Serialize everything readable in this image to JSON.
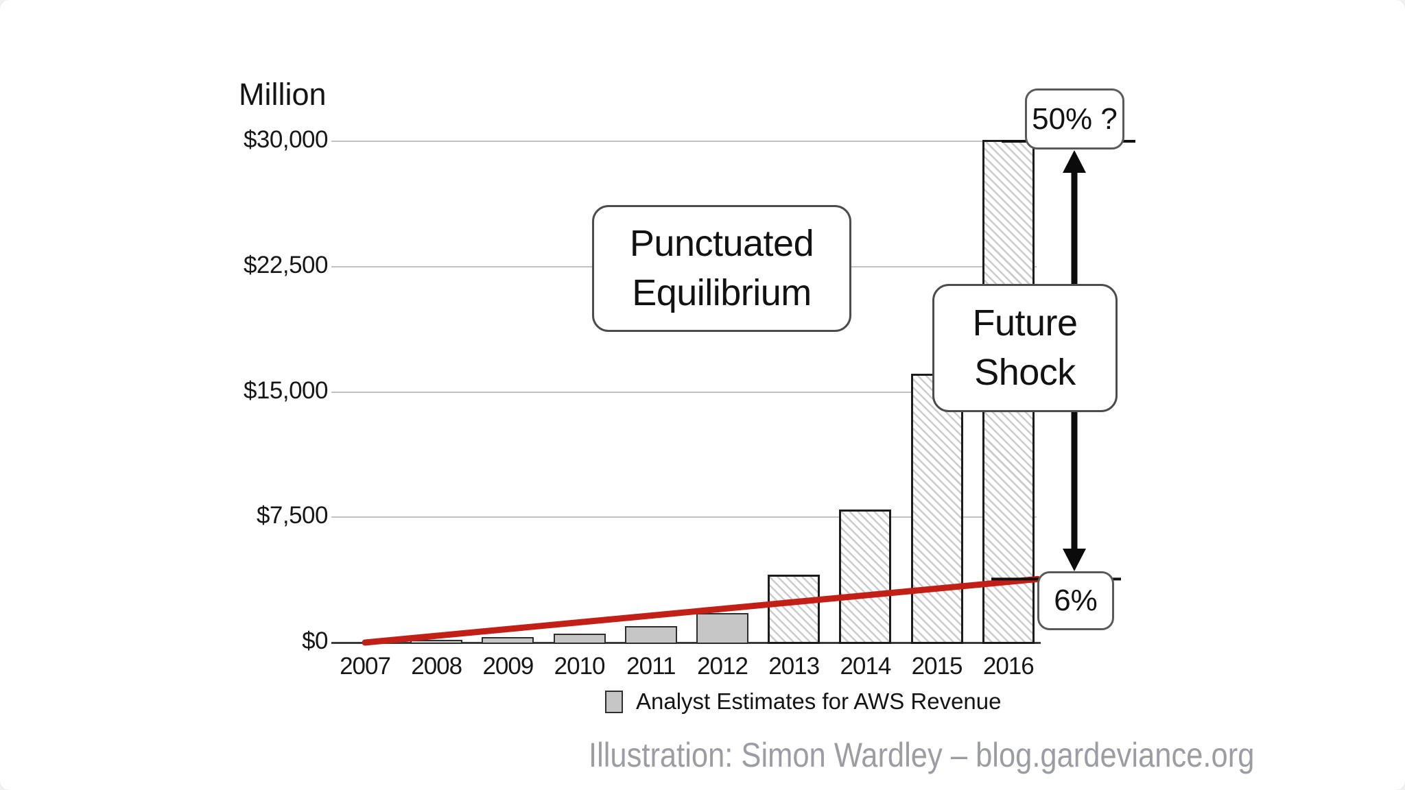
{
  "chart_data": {
    "type": "bar",
    "unit_label": "Million",
    "categories": [
      "2007",
      "2008",
      "2009",
      "2010",
      "2011",
      "2012",
      "2013",
      "2014",
      "2015",
      "2016"
    ],
    "series": [
      {
        "name": "Analyst Estimates for AWS Revenue",
        "values": [
          0,
          100,
          250,
          450,
          900,
          1700,
          4000,
          7900,
          16000,
          30000
        ],
        "bar_styles": [
          "none",
          "solid",
          "solid",
          "solid",
          "solid",
          "solid",
          "hatch",
          "hatch",
          "hatch",
          "hatch"
        ]
      }
    ],
    "ylim": [
      0,
      30000
    ],
    "yticks": [
      {
        "value": 30000,
        "label": "$30,000"
      },
      {
        "value": 22500,
        "label": "$22,500"
      },
      {
        "value": 15000,
        "label": "$15,000"
      },
      {
        "value": 7500,
        "label": "$7,500"
      },
      {
        "value": 0,
        "label": "$0"
      }
    ],
    "grid": true,
    "legend": {
      "label": "Analyst Estimates for AWS Revenue",
      "position": "bottom"
    },
    "trend_line": {
      "color": "#c22017",
      "from": {
        "category": "2007",
        "value": 0
      },
      "to": {
        "category": "2016",
        "value": 3800
      }
    },
    "marker_levels": [
      {
        "value": 30000,
        "label": "50% ?"
      },
      {
        "value": 3800,
        "label": "6%"
      }
    ]
  },
  "annotations": {
    "punctuated": {
      "line1": "Punctuated",
      "line2": "Equilibrium"
    },
    "future_shock": {
      "line1": "Future",
      "line2": "Shock"
    },
    "growth_high": "50% ?",
    "growth_low": "6%"
  },
  "footer": {
    "attribution": "Illustration: Simon Wardley – blog.gardeviance.org"
  },
  "colors": {
    "trend_line": "#c22017",
    "bar_solid_fill": "#c6c6c6",
    "bar_border": "#2d2d2d",
    "gridline": "#c2c2c6",
    "arrow": "#0b0b0b",
    "attribution_text": "#9b9da2"
  }
}
